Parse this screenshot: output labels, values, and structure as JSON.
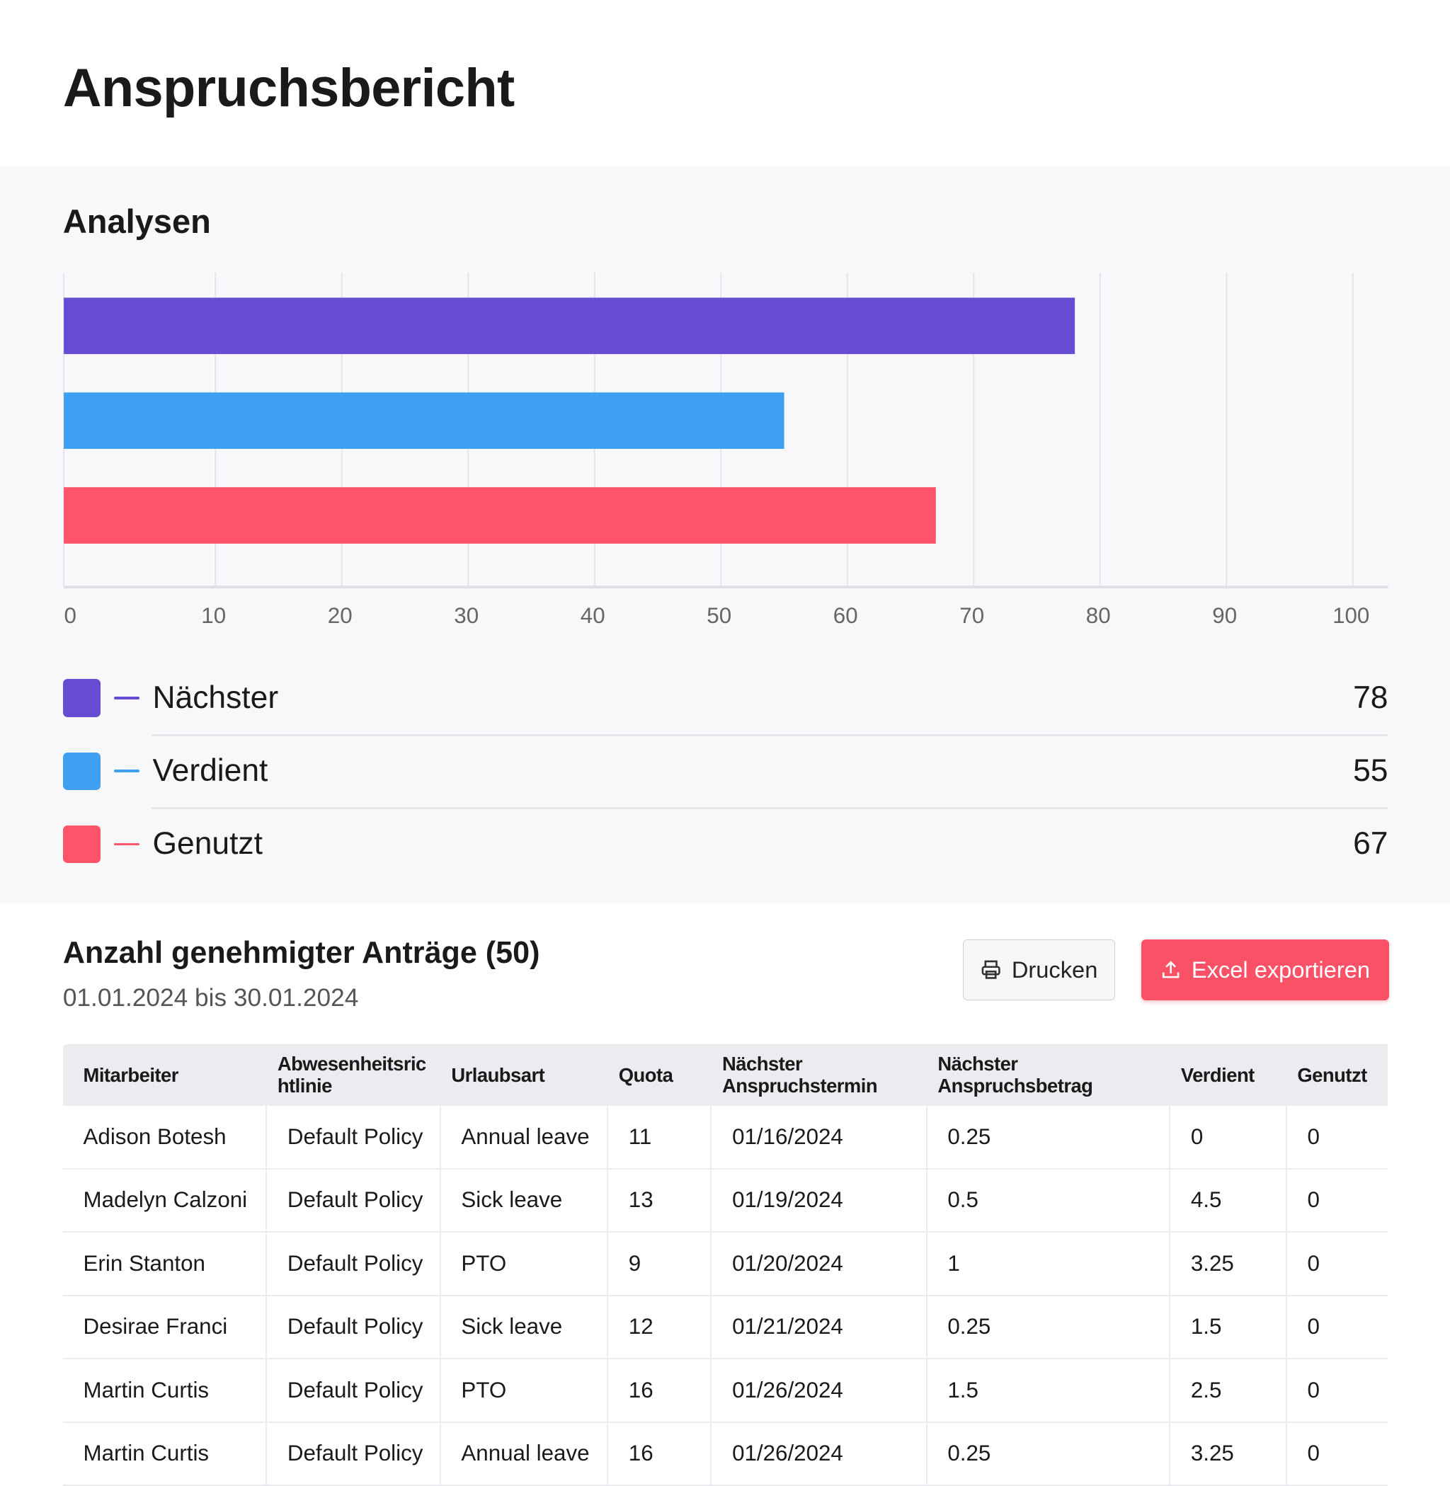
{
  "page_title": "Anspruchsbericht",
  "analysis": {
    "title": "Analysen"
  },
  "chart_data": {
    "type": "bar",
    "orientation": "horizontal",
    "categories": [
      "Nächster",
      "Verdient",
      "Genutzt"
    ],
    "values": [
      78,
      55,
      67
    ],
    "colors": [
      "#654cd3",
      "#3fa0f2",
      "#fd546a"
    ],
    "xlim": [
      0,
      100
    ],
    "xticks": [
      "0",
      "10",
      "20",
      "30",
      "40",
      "50",
      "60",
      "70",
      "80",
      "90",
      "100"
    ],
    "grid": true,
    "legend_placement": "bottom"
  },
  "legend": [
    {
      "label": "Nächster",
      "value": "78",
      "color": "#654cd3"
    },
    {
      "label": "Verdient",
      "value": "55",
      "color": "#3fa0f2"
    },
    {
      "label": "Genutzt",
      "value": "67",
      "color": "#fd546a"
    }
  ],
  "requests": {
    "title": "Anzahl genehmigter Anträge (50)",
    "date_range": "01.01.2024 bis 30.01.2024",
    "print_label": "Drucken",
    "export_label": "Excel exportieren",
    "columns": [
      "Mitarbeiter",
      "Abwesenheitsrichtlinie",
      "Urlaubsart",
      "Quota",
      "Nächster Anspruchstermin",
      "Nächster Anspruchsbetrag",
      "Verdient",
      "Genutzt"
    ],
    "rows": [
      [
        "Adison Botesh",
        "Default Policy",
        "Annual leave",
        "11",
        "01/16/2024",
        "0.25",
        "0",
        "0"
      ],
      [
        "Madelyn Calzoni",
        "Default Policy",
        "Sick leave",
        "13",
        "01/19/2024",
        "0.5",
        "4.5",
        "0"
      ],
      [
        "Erin Stanton",
        "Default Policy",
        "PTO",
        "9",
        "01/20/2024",
        "1",
        "3.25",
        "0"
      ],
      [
        "Desirae Franci",
        "Default Policy",
        "Sick leave",
        "12",
        "01/21/2024",
        "0.25",
        "1.5",
        "0"
      ],
      [
        "Martin Curtis",
        "Default Policy",
        "PTO",
        "16",
        "01/26/2024",
        "1.5",
        "2.5",
        "0"
      ],
      [
        "Martin Curtis",
        "Default Policy",
        "Annual leave",
        "16",
        "01/26/2024",
        "0.25",
        "3.25",
        "0"
      ]
    ]
  }
}
